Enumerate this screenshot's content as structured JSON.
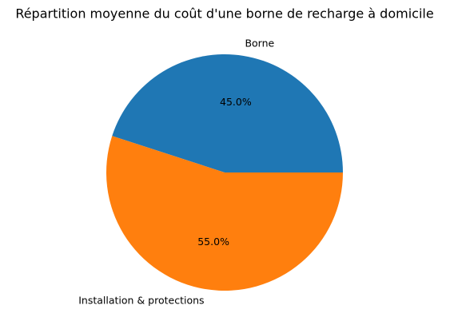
{
  "chart_data": {
    "type": "pie",
    "title": "Répartition moyenne du coût d'une borne de recharge à domicile",
    "categories": [
      "Borne",
      "Installation & protections"
    ],
    "values": [
      45,
      55
    ],
    "value_labels": [
      "45.0%",
      "55.0%"
    ],
    "colors": [
      "#1f77b4",
      "#ff7f0e"
    ]
  }
}
